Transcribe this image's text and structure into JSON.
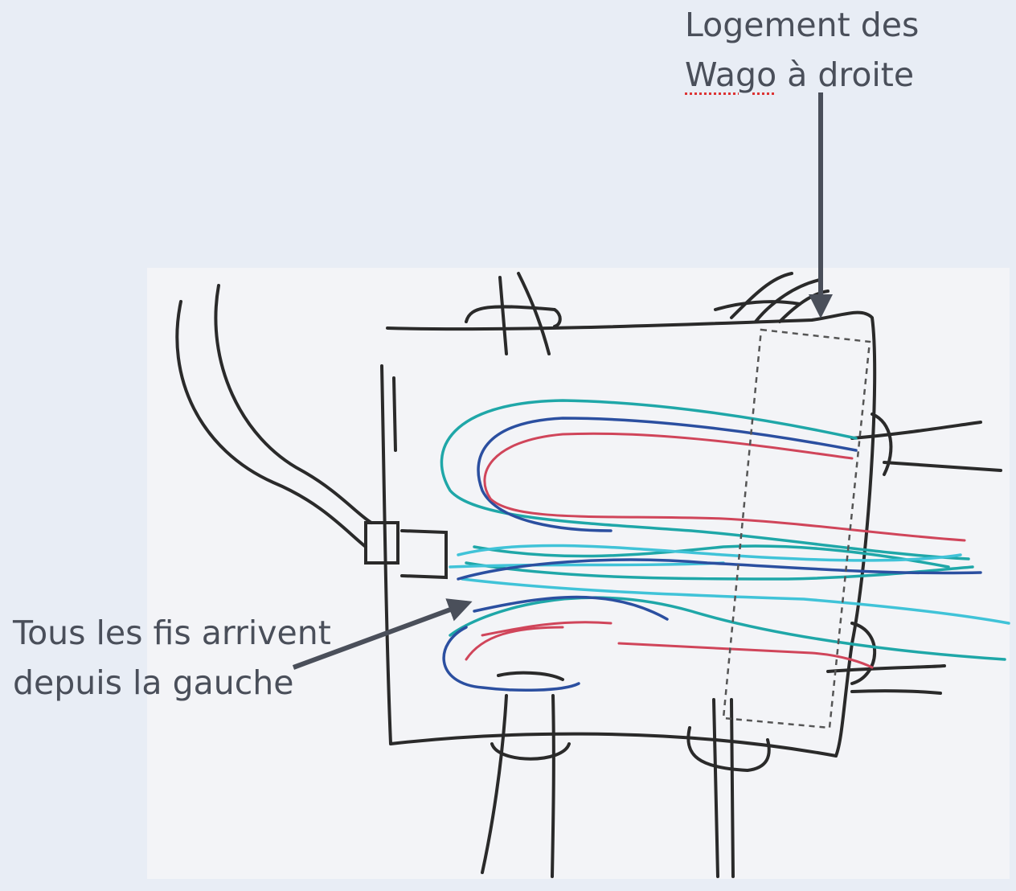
{
  "annotations": {
    "top": {
      "line1": "Logement des",
      "line2_word": "Wago",
      "line2_rest": " à droite"
    },
    "left": {
      "line1": "Tous les fis arrivent",
      "line2": "depuis la gauche"
    }
  },
  "colors": {
    "background": "#e8edf5",
    "sketch_paper": "#f3f4f7",
    "ink": "#2a2a2a",
    "wire_teal": "#1fa7a8",
    "wire_blue": "#2b4fa0",
    "wire_red": "#d0455a",
    "wire_cyan": "#40c3d8",
    "arrow": "#4a4f5a"
  }
}
